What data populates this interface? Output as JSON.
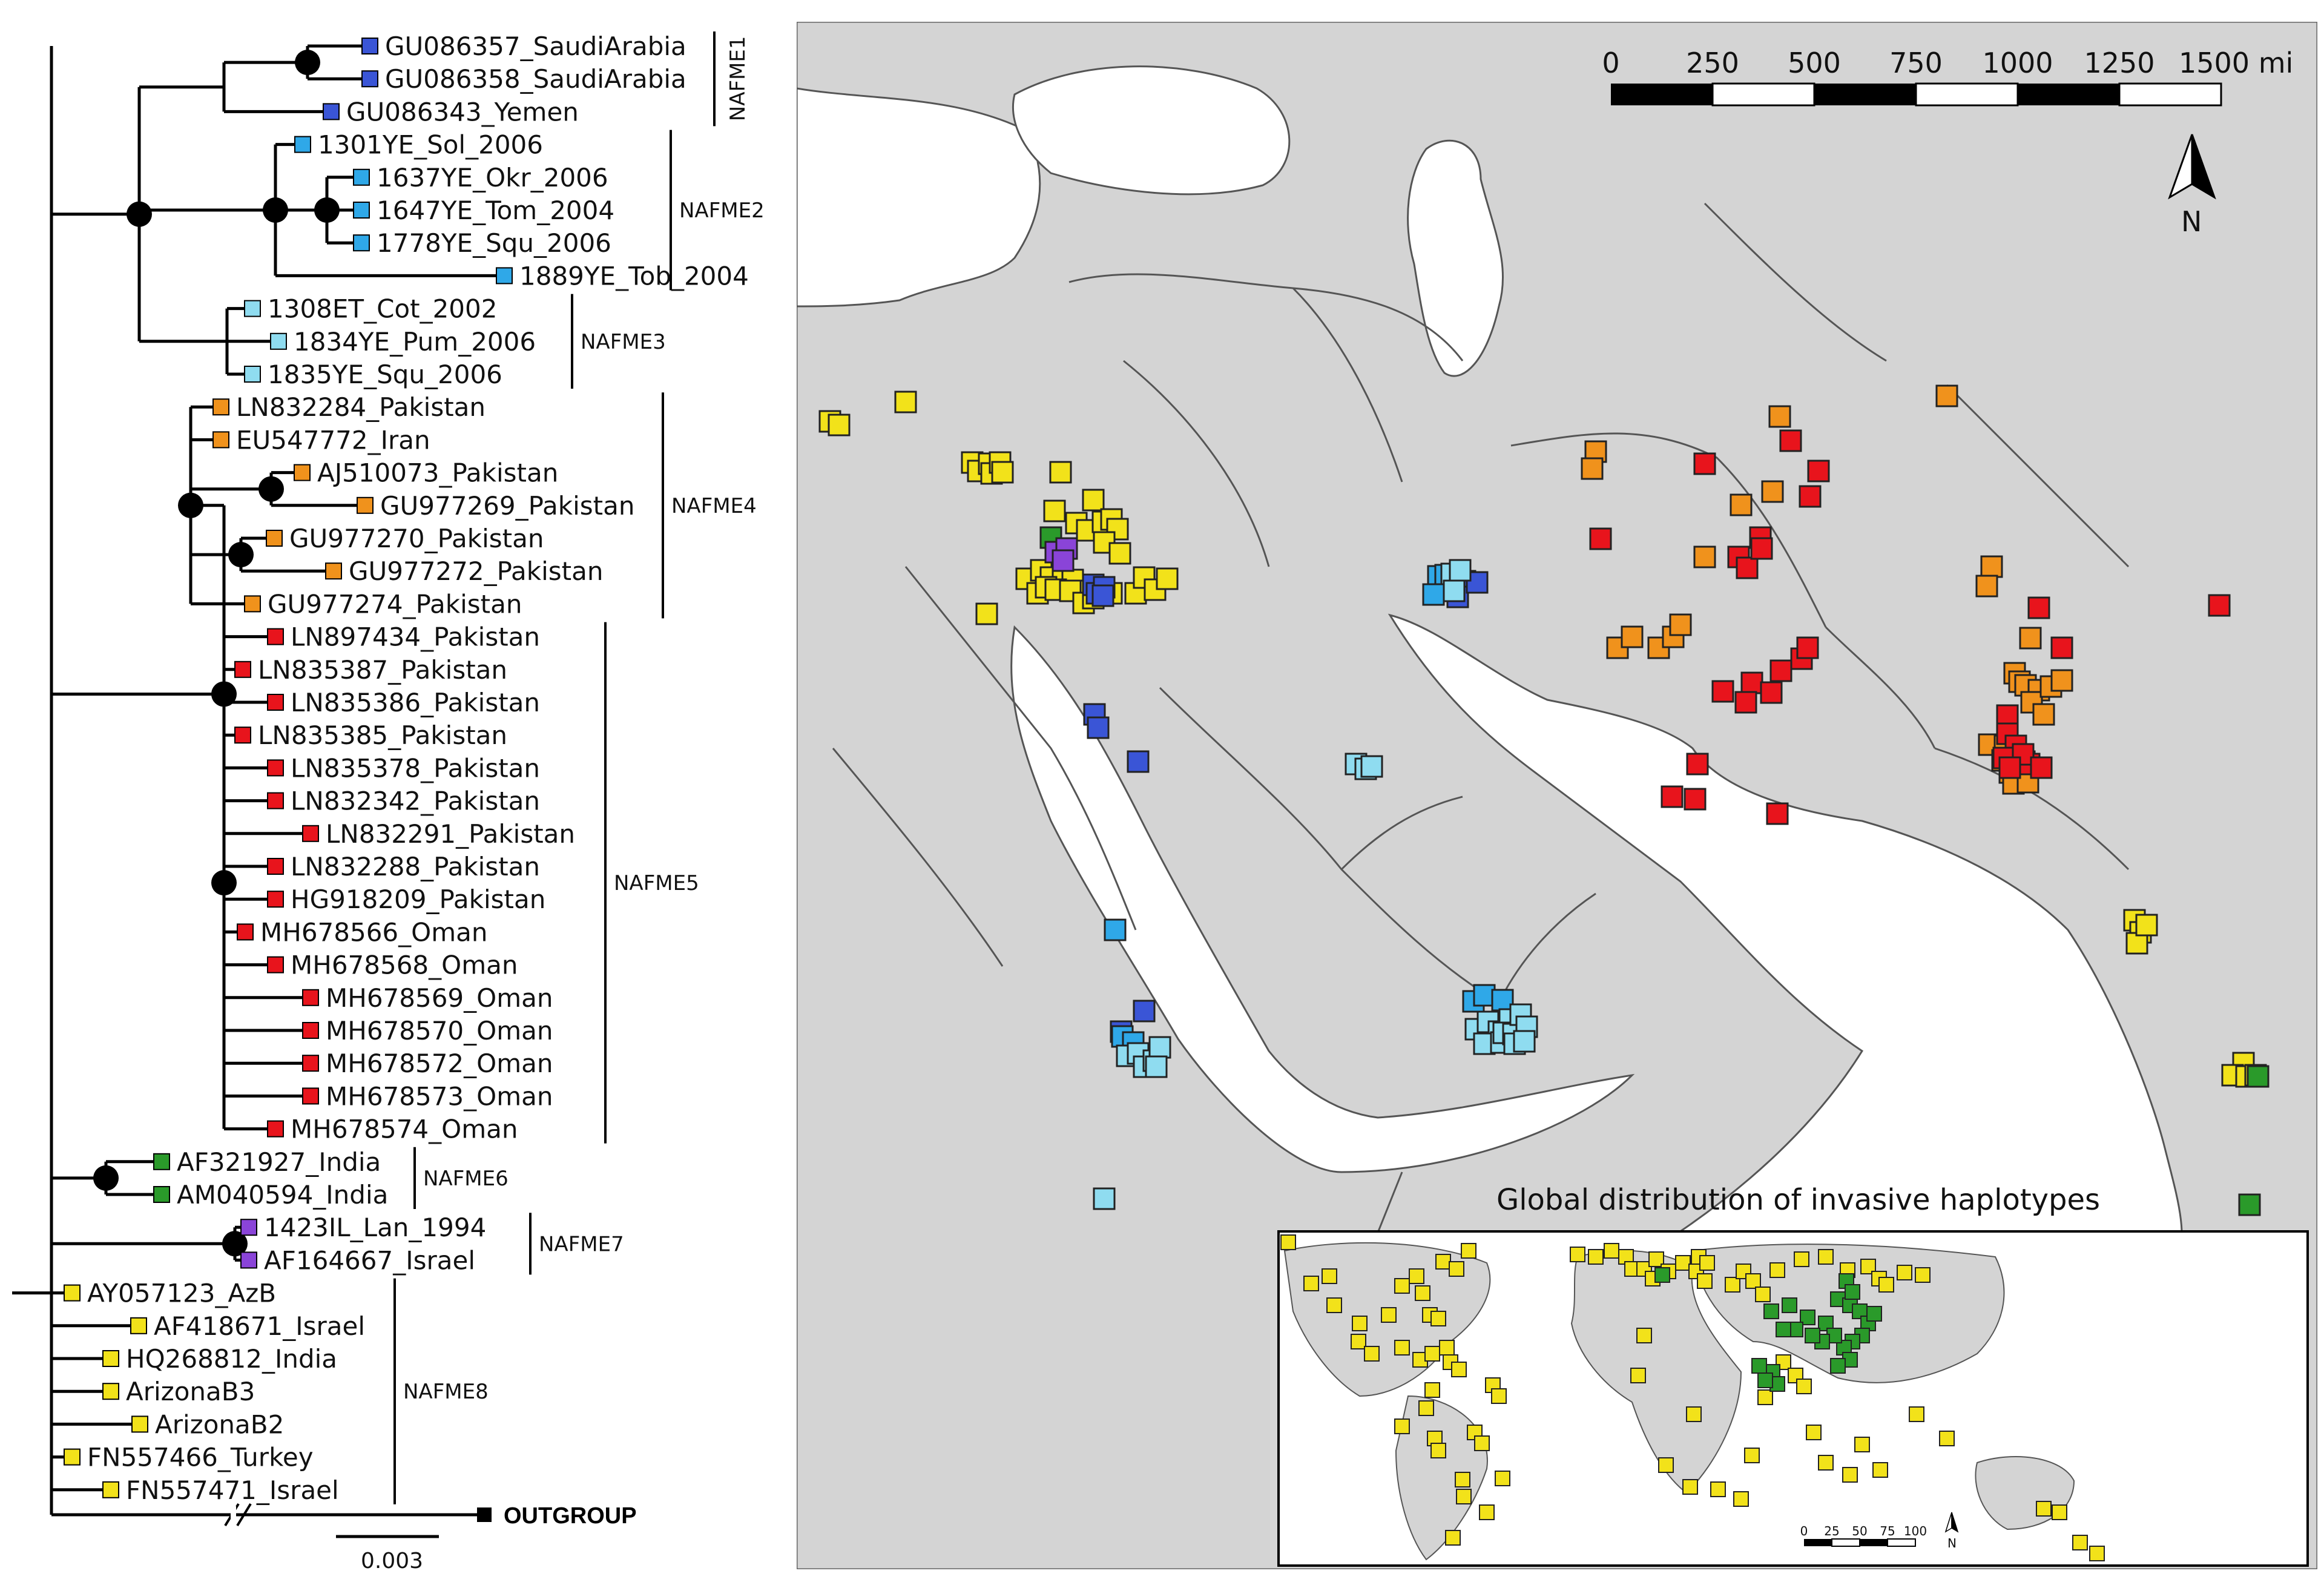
{
  "colors": {
    "NAFME1": "#3a55d6",
    "NAFME2": "#2fa8e8",
    "NAFME3": "#8fdcf0",
    "NAFME4": "#f0921c",
    "NAFME5": "#e8141c",
    "NAFME6": "#2a9a2a",
    "NAFME7": "#8a44d8",
    "NAFME8": "#f2e21a",
    "outgroup": "#000000"
  },
  "tree": {
    "taxa": [
      {
        "label": "GU086357_SaudiArabia",
        "clade": "NAFME1"
      },
      {
        "label": "GU086358_SaudiArabia",
        "clade": "NAFME1"
      },
      {
        "label": "GU086343_Yemen",
        "clade": "NAFME1"
      },
      {
        "label": "1301YE_Sol_2006",
        "clade": "NAFME2"
      },
      {
        "label": "1637YE_Okr_2006",
        "clade": "NAFME2"
      },
      {
        "label": "1647YE_Tom_2004",
        "clade": "NAFME2"
      },
      {
        "label": "1778YE_Squ_2006",
        "clade": "NAFME2"
      },
      {
        "label": "1889YE_Tob_2004",
        "clade": "NAFME2"
      },
      {
        "label": "1308ET_Cot_2002",
        "clade": "NAFME3"
      },
      {
        "label": "1834YE_Pum_2006",
        "clade": "NAFME3"
      },
      {
        "label": "1835YE_Squ_2006",
        "clade": "NAFME3"
      },
      {
        "label": "LN832284_Pakistan",
        "clade": "NAFME4"
      },
      {
        "label": "EU547772_Iran",
        "clade": "NAFME4"
      },
      {
        "label": "AJ510073_Pakistan",
        "clade": "NAFME4"
      },
      {
        "label": "GU977269_Pakistan",
        "clade": "NAFME4"
      },
      {
        "label": "GU977270_Pakistan",
        "clade": "NAFME4"
      },
      {
        "label": "GU977272_Pakistan",
        "clade": "NAFME4"
      },
      {
        "label": "GU977274_Pakistan",
        "clade": "NAFME4"
      },
      {
        "label": "LN897434_Pakistan",
        "clade": "NAFME5"
      },
      {
        "label": "LN835387_Pakistan",
        "clade": "NAFME5"
      },
      {
        "label": "LN835386_Pakistan",
        "clade": "NAFME5"
      },
      {
        "label": "LN835385_Pakistan",
        "clade": "NAFME5"
      },
      {
        "label": "LN835378_Pakistan",
        "clade": "NAFME5"
      },
      {
        "label": "LN832342_Pakistan",
        "clade": "NAFME5"
      },
      {
        "label": "LN832291_Pakistan",
        "clade": "NAFME5"
      },
      {
        "label": "LN832288_Pakistan",
        "clade": "NAFME5"
      },
      {
        "label": "HG918209_Pakistan",
        "clade": "NAFME5"
      },
      {
        "label": "MH678566_Oman",
        "clade": "NAFME5"
      },
      {
        "label": "MH678568_Oman",
        "clade": "NAFME5"
      },
      {
        "label": "MH678569_Oman",
        "clade": "NAFME5"
      },
      {
        "label": "MH678570_Oman",
        "clade": "NAFME5"
      },
      {
        "label": "MH678572_Oman",
        "clade": "NAFME5"
      },
      {
        "label": "MH678573_Oman",
        "clade": "NAFME5"
      },
      {
        "label": "MH678574_Oman",
        "clade": "NAFME5"
      },
      {
        "label": "AF321927_India",
        "clade": "NAFME6"
      },
      {
        "label": "AM040594_India",
        "clade": "NAFME6"
      },
      {
        "label": "1423IL_Lan_1994",
        "clade": "NAFME7"
      },
      {
        "label": "AF164667_Israel",
        "clade": "NAFME7"
      },
      {
        "label": "AY057123_AzB",
        "clade": "NAFME8"
      },
      {
        "label": "AF418671_Israel",
        "clade": "NAFME8"
      },
      {
        "label": "HQ268812_India",
        "clade": "NAFME8"
      },
      {
        "label": "ArizonaB3",
        "clade": "NAFME8"
      },
      {
        "label": "ArizonaB2",
        "clade": "NAFME8"
      },
      {
        "label": "FN557466_Turkey",
        "clade": "NAFME8"
      },
      {
        "label": "FN557471_Israel",
        "clade": "NAFME8"
      }
    ],
    "clade_labels": [
      "NAFME1",
      "NAFME2",
      "NAFME3",
      "NAFME4",
      "NAFME5",
      "NAFME6",
      "NAFME7",
      "NAFME8"
    ],
    "outgroup_label": "OUTGROUP",
    "scale_label": "0.003"
  },
  "map": {
    "scalebar_ticks": [
      "0",
      "250",
      "500",
      "750",
      "1000",
      "1250",
      "1500 mi"
    ],
    "north_label": "N",
    "inset": {
      "title": "Global distribution of invasive haplotypes",
      "scalebar_ticks": [
        "0",
        "25",
        "50",
        "75",
        "100"
      ],
      "north_label": "N"
    }
  }
}
